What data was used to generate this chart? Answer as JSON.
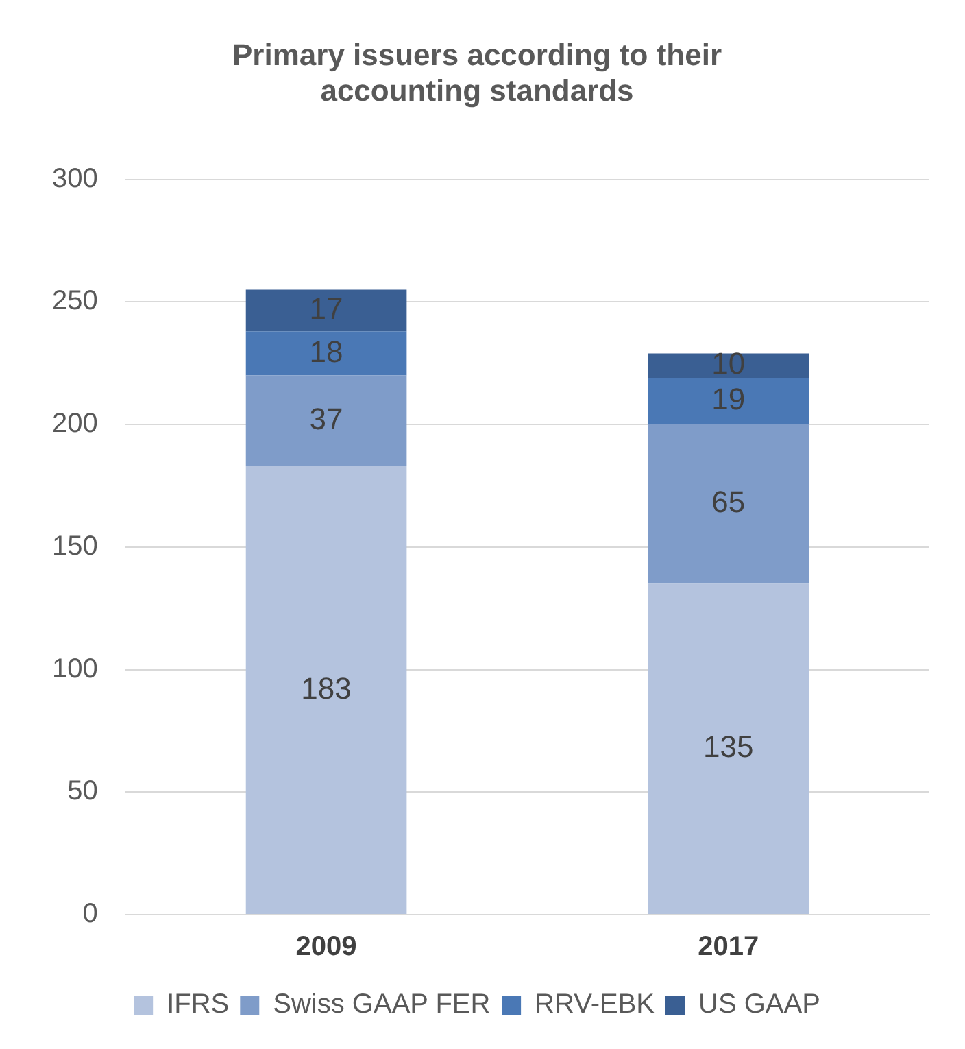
{
  "chart_data": {
    "type": "bar",
    "title": "Primary issuers according to their accounting standards",
    "categories": [
      "2009",
      "2017"
    ],
    "stacked": true,
    "series": [
      {
        "name": "IFRS",
        "color": "#b4c3de",
        "values": [
          183,
          135
        ]
      },
      {
        "name": "Swiss GAAP FER",
        "color": "#7f9cc9",
        "values": [
          37,
          65
        ]
      },
      {
        "name": "RRV-EBK",
        "color": "#4a78b5",
        "values": [
          18,
          19
        ]
      },
      {
        "name": "US GAAP",
        "color": "#3a5f93",
        "values": [
          17,
          10
        ]
      }
    ],
    "ylim": [
      0,
      300
    ],
    "yticks": [
      0,
      50,
      100,
      150,
      200,
      250,
      300
    ],
    "grid": "y",
    "legend": "bottom",
    "data_labels": true
  }
}
